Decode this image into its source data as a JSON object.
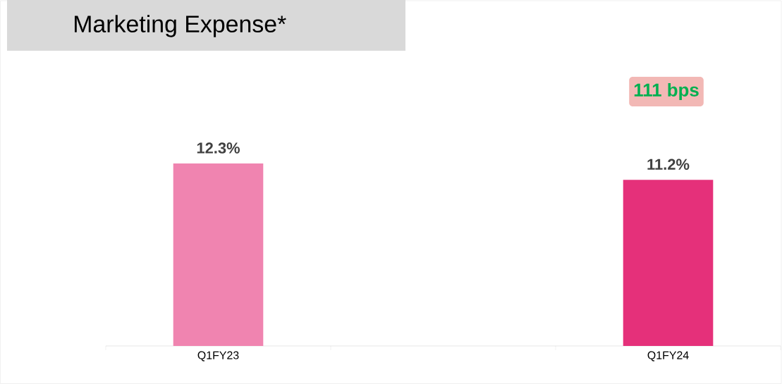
{
  "chart_data": {
    "type": "bar",
    "title": "Marketing Expense*",
    "categories": [
      "Q1FY23",
      "Q1FY24"
    ],
    "values": [
      12.3,
      11.2
    ],
    "colors": [
      "#f084b0",
      "#e5307a"
    ],
    "value_labels": [
      "12.3%",
      "11.2%"
    ],
    "annotations": [
      "111 bps"
    ]
  }
}
